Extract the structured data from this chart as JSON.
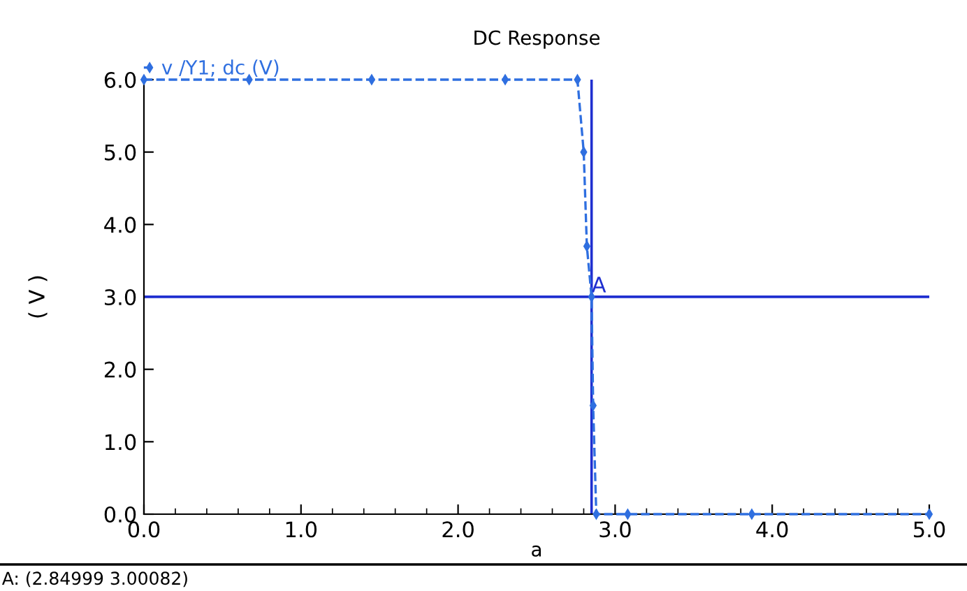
{
  "chart_data": {
    "type": "line",
    "title": "DC Response",
    "xlabel": "a",
    "ylabel": "( V )",
    "series": [
      {
        "name": "v /Y1; dc (V)",
        "color": "#2f6fe0",
        "x": [
          0,
          0.67,
          1.45,
          2.3,
          2.76,
          2.8,
          2.82,
          2.85,
          2.86,
          2.88,
          3.08,
          3.87,
          5.0
        ],
        "values": [
          6.0,
          6.0,
          6.0,
          6.0,
          6.0,
          5.0,
          3.7,
          3.0,
          1.5,
          0,
          0,
          0,
          0
        ]
      }
    ],
    "marker": "diamond",
    "line_style": "dashed",
    "legend": "top left",
    "grid": false,
    "xlim": [
      0,
      5
    ],
    "xticks": [
      {
        "value": 0,
        "label": "0.0"
      },
      {
        "value": 1,
        "label": "1.0"
      },
      {
        "value": 2,
        "label": "2.0"
      },
      {
        "value": 3,
        "label": "3.0"
      },
      {
        "value": 4,
        "label": "4.0"
      },
      {
        "value": 5,
        "label": "5.0"
      }
    ],
    "ylim": [
      0,
      6
    ],
    "yticks": [
      {
        "value": 0,
        "label": "0.0"
      },
      {
        "value": 1,
        "label": "1.0"
      },
      {
        "value": 2,
        "label": "2.0"
      },
      {
        "value": 3,
        "label": "3.0"
      },
      {
        "value": 4,
        "label": "4.0"
      },
      {
        "value": 5,
        "label": "5.0"
      },
      {
        "value": 6,
        "label": "6.0"
      }
    ],
    "ref_lines": [
      {
        "axis": "x",
        "value": 2.84999,
        "label": "A",
        "color": "#1f2fd0"
      },
      {
        "axis": "y",
        "value": 3.00082,
        "label": null,
        "color": "#1f2fd0"
      }
    ],
    "annotations": [
      "A: (2.84999 3.00082)"
    ]
  }
}
